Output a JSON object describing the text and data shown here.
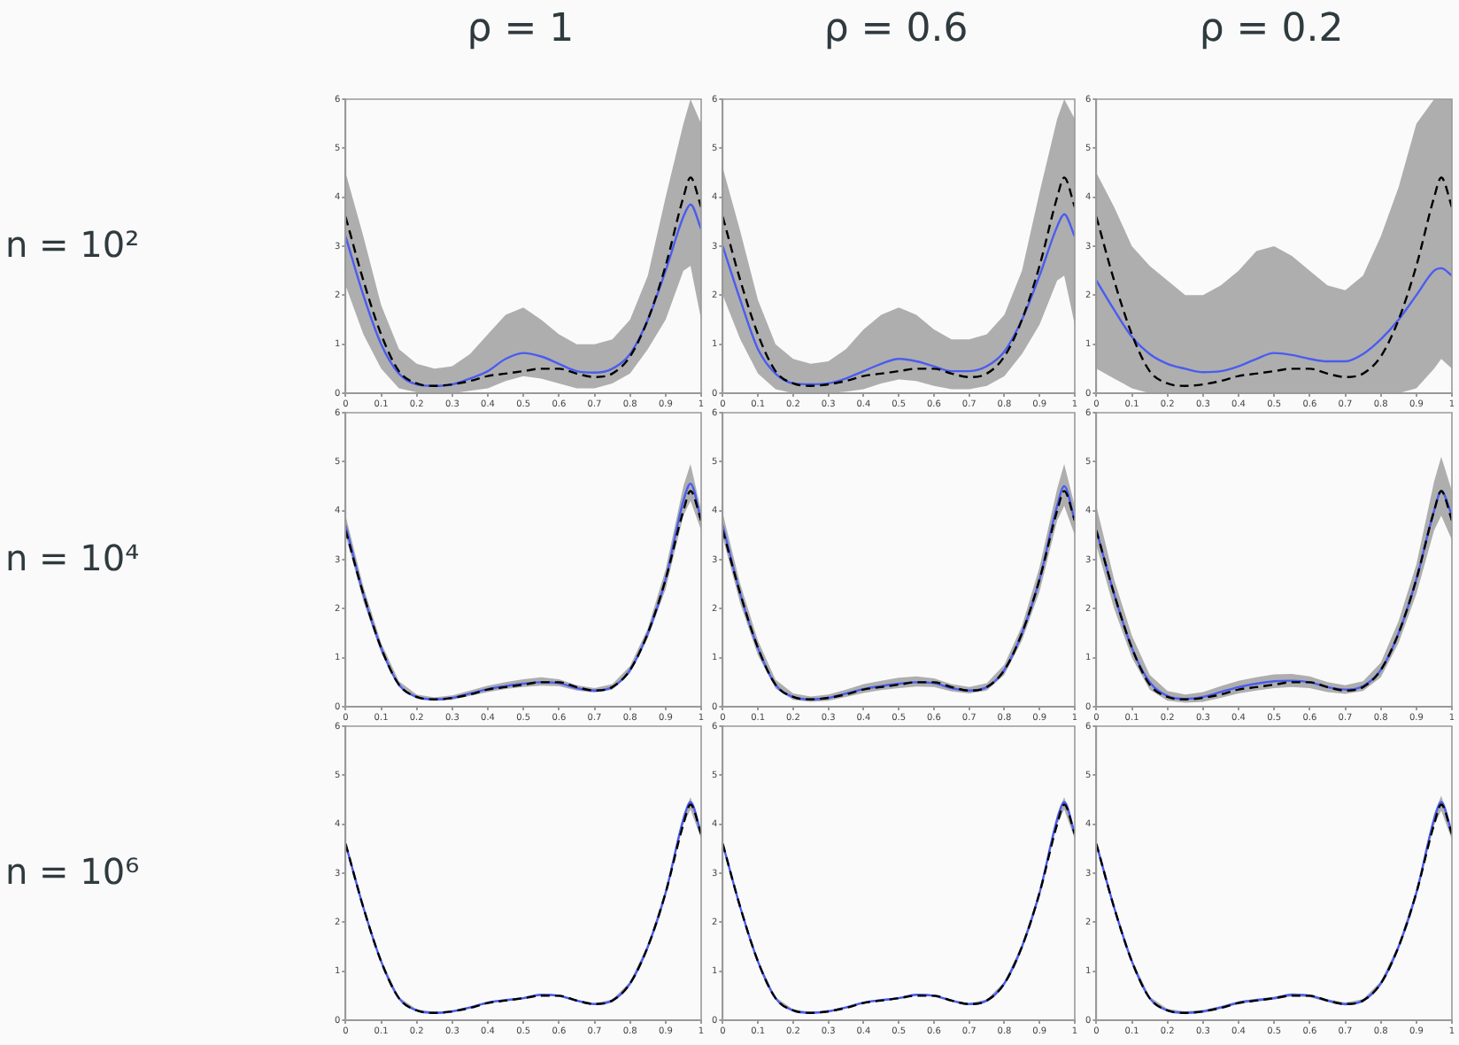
{
  "chart_data": [
    {
      "type": "line",
      "title": "ρ = 1",
      "ylabel": "n = 10²",
      "xlim": [
        0,
        1
      ],
      "ylim": [
        0,
        6
      ],
      "xticks": [
        0,
        0.1,
        0.2,
        0.3,
        0.4,
        0.5,
        0.6,
        0.7,
        0.8,
        0.9,
        1
      ],
      "yticks": [
        0,
        1,
        2,
        3,
        4,
        5,
        6
      ],
      "x": [
        0,
        0.05,
        0.1,
        0.15,
        0.2,
        0.25,
        0.3,
        0.35,
        0.4,
        0.45,
        0.5,
        0.55,
        0.6,
        0.65,
        0.7,
        0.75,
        0.8,
        0.85,
        0.9,
        0.95,
        0.97,
        1
      ],
      "series": [
        {
          "color": "#4a5cf0",
          "values": [
            3.2,
            2.0,
            1.0,
            0.4,
            0.18,
            0.15,
            0.18,
            0.3,
            0.45,
            0.7,
            0.82,
            0.75,
            0.6,
            0.45,
            0.42,
            0.5,
            0.8,
            1.5,
            2.5,
            3.6,
            3.85,
            3.35
          ],
          "lower": [
            2.2,
            1.2,
            0.5,
            0.1,
            0.02,
            0,
            0,
            0.05,
            0.1,
            0.25,
            0.35,
            0.3,
            0.2,
            0.1,
            0.1,
            0.2,
            0.4,
            0.9,
            1.5,
            2.5,
            2.6,
            1.5
          ],
          "upper": [
            4.5,
            3.2,
            1.8,
            0.9,
            0.6,
            0.5,
            0.55,
            0.8,
            1.2,
            1.6,
            1.75,
            1.5,
            1.2,
            1.0,
            1.0,
            1.1,
            1.5,
            2.4,
            4.0,
            5.5,
            6,
            5.5
          ]
        },
        {
          "color": "#000000",
          "line_style": "dashed",
          "values": [
            3.6,
            2.3,
            1.2,
            0.45,
            0.2,
            0.15,
            0.18,
            0.25,
            0.35,
            0.4,
            0.45,
            0.5,
            0.5,
            0.4,
            0.33,
            0.4,
            0.75,
            1.5,
            2.6,
            4.0,
            4.4,
            3.8
          ]
        }
      ]
    },
    {
      "type": "line",
      "title": "ρ = 0.6",
      "xlim": [
        0,
        1
      ],
      "ylim": [
        0,
        6
      ],
      "xticks": [
        0,
        0.1,
        0.2,
        0.3,
        0.4,
        0.5,
        0.6,
        0.7,
        0.8,
        0.9,
        1
      ],
      "yticks": [
        0,
        1,
        2,
        3,
        4,
        5,
        6
      ],
      "x": [
        0,
        0.05,
        0.1,
        0.15,
        0.2,
        0.25,
        0.3,
        0.35,
        0.4,
        0.45,
        0.5,
        0.55,
        0.6,
        0.65,
        0.7,
        0.75,
        0.8,
        0.85,
        0.9,
        0.95,
        0.97,
        1
      ],
      "series": [
        {
          "color": "#4a5cf0",
          "values": [
            3.0,
            1.9,
            0.9,
            0.4,
            0.2,
            0.18,
            0.2,
            0.3,
            0.45,
            0.6,
            0.7,
            0.65,
            0.55,
            0.45,
            0.45,
            0.55,
            0.85,
            1.5,
            2.4,
            3.4,
            3.65,
            3.2
          ],
          "lower": [
            2.0,
            1.1,
            0.4,
            0.08,
            0,
            0,
            0,
            0.03,
            0.08,
            0.2,
            0.28,
            0.25,
            0.15,
            0.08,
            0.08,
            0.15,
            0.35,
            0.8,
            1.4,
            2.3,
            2.4,
            1.4
          ],
          "upper": [
            4.6,
            3.3,
            1.9,
            1.0,
            0.7,
            0.6,
            0.65,
            0.9,
            1.3,
            1.6,
            1.75,
            1.6,
            1.3,
            1.1,
            1.1,
            1.2,
            1.6,
            2.5,
            4.1,
            5.6,
            6,
            5.6
          ]
        },
        {
          "color": "#000000",
          "line_style": "dashed",
          "values": [
            3.6,
            2.3,
            1.2,
            0.45,
            0.2,
            0.15,
            0.18,
            0.25,
            0.35,
            0.4,
            0.45,
            0.5,
            0.5,
            0.4,
            0.33,
            0.4,
            0.75,
            1.5,
            2.6,
            4.0,
            4.4,
            3.8
          ]
        }
      ]
    },
    {
      "type": "line",
      "title": "ρ = 0.2",
      "xlim": [
        0,
        1
      ],
      "ylim": [
        0,
        6
      ],
      "xticks": [
        0,
        0.1,
        0.2,
        0.3,
        0.4,
        0.5,
        0.6,
        0.7,
        0.8,
        0.9,
        1
      ],
      "yticks": [
        0,
        1,
        2,
        3,
        4,
        5,
        6
      ],
      "x": [
        0,
        0.05,
        0.1,
        0.15,
        0.2,
        0.25,
        0.3,
        0.35,
        0.4,
        0.45,
        0.5,
        0.55,
        0.6,
        0.65,
        0.7,
        0.75,
        0.8,
        0.85,
        0.9,
        0.95,
        0.97,
        1
      ],
      "series": [
        {
          "color": "#4a5cf0",
          "values": [
            2.3,
            1.7,
            1.15,
            0.8,
            0.6,
            0.5,
            0.43,
            0.45,
            0.55,
            0.7,
            0.82,
            0.78,
            0.7,
            0.65,
            0.65,
            0.8,
            1.1,
            1.5,
            2.0,
            2.5,
            2.55,
            2.4
          ],
          "lower": [
            0.5,
            0.3,
            0.1,
            0,
            0,
            0,
            0,
            0,
            0,
            0,
            0,
            0,
            0,
            0,
            0,
            0,
            0,
            0,
            0.1,
            0.5,
            0.7,
            0.5
          ],
          "upper": [
            4.5,
            3.8,
            3.0,
            2.6,
            2.3,
            2.0,
            2.0,
            2.2,
            2.5,
            2.9,
            3.0,
            2.8,
            2.5,
            2.2,
            2.1,
            2.4,
            3.2,
            4.2,
            5.5,
            6,
            6,
            6
          ]
        },
        {
          "color": "#000000",
          "line_style": "dashed",
          "values": [
            3.6,
            2.3,
            1.2,
            0.45,
            0.2,
            0.15,
            0.18,
            0.25,
            0.35,
            0.4,
            0.45,
            0.5,
            0.5,
            0.4,
            0.33,
            0.4,
            0.75,
            1.5,
            2.6,
            4.0,
            4.4,
            3.8
          ]
        }
      ]
    },
    {
      "type": "line",
      "ylabel": "n = 10⁴",
      "xlim": [
        0,
        1
      ],
      "ylim": [
        0,
        6
      ],
      "xticks": [
        0,
        0.1,
        0.2,
        0.3,
        0.4,
        0.5,
        0.6,
        0.7,
        0.8,
        0.9,
        1
      ],
      "yticks": [
        0,
        1,
        2,
        3,
        4,
        5,
        6
      ],
      "x": [
        0,
        0.05,
        0.1,
        0.15,
        0.2,
        0.25,
        0.3,
        0.35,
        0.4,
        0.45,
        0.5,
        0.55,
        0.6,
        0.65,
        0.7,
        0.75,
        0.8,
        0.85,
        0.9,
        0.95,
        0.97,
        1
      ],
      "series": [
        {
          "color": "#4a5cf0",
          "values": [
            3.7,
            2.3,
            1.2,
            0.45,
            0.2,
            0.15,
            0.18,
            0.27,
            0.36,
            0.42,
            0.47,
            0.5,
            0.48,
            0.38,
            0.33,
            0.4,
            0.75,
            1.5,
            2.6,
            4.2,
            4.55,
            3.8
          ],
          "lower": [
            3.5,
            2.15,
            1.1,
            0.4,
            0.16,
            0.12,
            0.14,
            0.22,
            0.3,
            0.36,
            0.4,
            0.43,
            0.42,
            0.33,
            0.29,
            0.35,
            0.68,
            1.4,
            2.4,
            3.9,
            4.2,
            3.6
          ],
          "upper": [
            3.9,
            2.45,
            1.3,
            0.52,
            0.25,
            0.19,
            0.23,
            0.33,
            0.43,
            0.5,
            0.56,
            0.6,
            0.56,
            0.44,
            0.38,
            0.46,
            0.83,
            1.6,
            2.8,
            4.5,
            4.95,
            4.0
          ]
        },
        {
          "color": "#000000",
          "line_style": "dashed",
          "values": [
            3.6,
            2.3,
            1.2,
            0.45,
            0.2,
            0.15,
            0.18,
            0.25,
            0.35,
            0.4,
            0.45,
            0.5,
            0.5,
            0.4,
            0.33,
            0.4,
            0.75,
            1.5,
            2.6,
            4.0,
            4.4,
            3.8
          ]
        }
      ]
    },
    {
      "type": "line",
      "xlim": [
        0,
        1
      ],
      "ylim": [
        0,
        6
      ],
      "xticks": [
        0,
        0.1,
        0.2,
        0.3,
        0.4,
        0.5,
        0.6,
        0.7,
        0.8,
        0.9,
        1
      ],
      "yticks": [
        0,
        1,
        2,
        3,
        4,
        5,
        6
      ],
      "x": [
        0,
        0.05,
        0.1,
        0.15,
        0.2,
        0.25,
        0.3,
        0.35,
        0.4,
        0.45,
        0.5,
        0.55,
        0.6,
        0.65,
        0.7,
        0.75,
        0.8,
        0.85,
        0.9,
        0.95,
        0.97,
        1
      ],
      "series": [
        {
          "color": "#4a5cf0",
          "values": [
            3.7,
            2.3,
            1.2,
            0.45,
            0.2,
            0.15,
            0.18,
            0.27,
            0.36,
            0.42,
            0.47,
            0.5,
            0.48,
            0.38,
            0.33,
            0.4,
            0.75,
            1.5,
            2.6,
            4.1,
            4.5,
            3.8
          ],
          "lower": [
            3.45,
            2.1,
            1.05,
            0.37,
            0.14,
            0.1,
            0.12,
            0.2,
            0.28,
            0.34,
            0.38,
            0.41,
            0.4,
            0.31,
            0.27,
            0.33,
            0.65,
            1.35,
            2.35,
            3.8,
            4.1,
            3.5
          ],
          "upper": [
            3.95,
            2.5,
            1.35,
            0.55,
            0.27,
            0.21,
            0.25,
            0.35,
            0.46,
            0.53,
            0.59,
            0.62,
            0.58,
            0.46,
            0.4,
            0.48,
            0.86,
            1.65,
            2.85,
            4.45,
            4.95,
            4.1
          ]
        },
        {
          "color": "#000000",
          "line_style": "dashed",
          "values": [
            3.6,
            2.3,
            1.2,
            0.45,
            0.2,
            0.15,
            0.18,
            0.25,
            0.35,
            0.4,
            0.45,
            0.5,
            0.5,
            0.4,
            0.33,
            0.4,
            0.75,
            1.5,
            2.6,
            4.0,
            4.4,
            3.8
          ]
        }
      ]
    },
    {
      "type": "line",
      "xlim": [
        0,
        1
      ],
      "ylim": [
        0,
        6
      ],
      "xticks": [
        0,
        0.1,
        0.2,
        0.3,
        0.4,
        0.5,
        0.6,
        0.7,
        0.8,
        0.9,
        1
      ],
      "yticks": [
        0,
        1,
        2,
        3,
        4,
        5,
        6
      ],
      "x": [
        0,
        0.05,
        0.1,
        0.15,
        0.2,
        0.25,
        0.3,
        0.35,
        0.4,
        0.45,
        0.5,
        0.55,
        0.6,
        0.65,
        0.7,
        0.75,
        0.8,
        0.85,
        0.9,
        0.95,
        0.97,
        1
      ],
      "series": [
        {
          "color": "#4a5cf0",
          "values": [
            3.6,
            2.3,
            1.2,
            0.5,
            0.22,
            0.16,
            0.2,
            0.3,
            0.4,
            0.47,
            0.52,
            0.53,
            0.5,
            0.4,
            0.35,
            0.42,
            0.75,
            1.5,
            2.6,
            4.0,
            4.4,
            3.9
          ],
          "lower": [
            3.3,
            2.0,
            1.0,
            0.35,
            0.12,
            0.08,
            0.1,
            0.18,
            0.27,
            0.33,
            0.38,
            0.4,
            0.38,
            0.3,
            0.26,
            0.32,
            0.6,
            1.3,
            2.3,
            3.6,
            3.9,
            3.4
          ],
          "upper": [
            4.1,
            2.6,
            1.45,
            0.65,
            0.32,
            0.25,
            0.3,
            0.42,
            0.53,
            0.6,
            0.66,
            0.67,
            0.62,
            0.5,
            0.44,
            0.52,
            0.9,
            1.75,
            2.9,
            4.6,
            5.1,
            4.4
          ]
        },
        {
          "color": "#000000",
          "line_style": "dashed",
          "values": [
            3.6,
            2.3,
            1.2,
            0.45,
            0.2,
            0.15,
            0.18,
            0.25,
            0.35,
            0.4,
            0.45,
            0.5,
            0.5,
            0.4,
            0.33,
            0.4,
            0.75,
            1.5,
            2.6,
            4.0,
            4.4,
            3.8
          ]
        }
      ]
    },
    {
      "type": "line",
      "ylabel": "n = 10⁶",
      "xlim": [
        0,
        1
      ],
      "ylim": [
        0,
        6
      ],
      "xticks": [
        0,
        0.1,
        0.2,
        0.3,
        0.4,
        0.5,
        0.6,
        0.7,
        0.8,
        0.9,
        1
      ],
      "yticks": [
        0,
        1,
        2,
        3,
        4,
        5,
        6
      ],
      "x": [
        0,
        0.05,
        0.1,
        0.15,
        0.2,
        0.25,
        0.3,
        0.35,
        0.4,
        0.45,
        0.5,
        0.55,
        0.6,
        0.65,
        0.7,
        0.75,
        0.8,
        0.85,
        0.9,
        0.95,
        0.97,
        1
      ],
      "series": [
        {
          "color": "#4a5cf0",
          "values": [
            3.6,
            2.3,
            1.2,
            0.45,
            0.2,
            0.15,
            0.18,
            0.26,
            0.36,
            0.41,
            0.45,
            0.52,
            0.5,
            0.4,
            0.33,
            0.4,
            0.75,
            1.5,
            2.6,
            4.1,
            4.45,
            3.8
          ],
          "lower": [
            3.55,
            2.26,
            1.17,
            0.43,
            0.18,
            0.13,
            0.16,
            0.24,
            0.34,
            0.39,
            0.43,
            0.5,
            0.48,
            0.38,
            0.31,
            0.38,
            0.72,
            1.46,
            2.55,
            4.0,
            4.3,
            3.7
          ],
          "upper": [
            3.65,
            2.34,
            1.23,
            0.47,
            0.22,
            0.17,
            0.2,
            0.28,
            0.38,
            0.43,
            0.47,
            0.54,
            0.52,
            0.42,
            0.35,
            0.42,
            0.78,
            1.54,
            2.65,
            4.2,
            4.55,
            3.9
          ]
        },
        {
          "color": "#000000",
          "line_style": "dashed",
          "values": [
            3.6,
            2.3,
            1.2,
            0.45,
            0.2,
            0.15,
            0.18,
            0.25,
            0.35,
            0.4,
            0.45,
            0.5,
            0.5,
            0.4,
            0.33,
            0.4,
            0.75,
            1.5,
            2.6,
            4.0,
            4.4,
            3.8
          ]
        }
      ]
    },
    {
      "type": "line",
      "xlim": [
        0,
        1
      ],
      "ylim": [
        0,
        6
      ],
      "xticks": [
        0,
        0.1,
        0.2,
        0.3,
        0.4,
        0.5,
        0.6,
        0.7,
        0.8,
        0.9,
        1
      ],
      "yticks": [
        0,
        1,
        2,
        3,
        4,
        5,
        6
      ],
      "x": [
        0,
        0.05,
        0.1,
        0.15,
        0.2,
        0.25,
        0.3,
        0.35,
        0.4,
        0.45,
        0.5,
        0.55,
        0.6,
        0.65,
        0.7,
        0.75,
        0.8,
        0.85,
        0.9,
        0.95,
        0.97,
        1
      ],
      "series": [
        {
          "color": "#4a5cf0",
          "values": [
            3.6,
            2.3,
            1.2,
            0.45,
            0.2,
            0.15,
            0.18,
            0.26,
            0.36,
            0.41,
            0.45,
            0.52,
            0.5,
            0.4,
            0.33,
            0.4,
            0.75,
            1.5,
            2.6,
            4.1,
            4.45,
            3.8
          ],
          "lower": [
            3.55,
            2.26,
            1.17,
            0.43,
            0.18,
            0.13,
            0.16,
            0.24,
            0.34,
            0.39,
            0.43,
            0.5,
            0.48,
            0.38,
            0.31,
            0.38,
            0.72,
            1.46,
            2.55,
            4.0,
            4.3,
            3.7
          ],
          "upper": [
            3.65,
            2.34,
            1.23,
            0.47,
            0.22,
            0.17,
            0.2,
            0.28,
            0.38,
            0.43,
            0.47,
            0.54,
            0.52,
            0.42,
            0.35,
            0.42,
            0.78,
            1.54,
            2.65,
            4.2,
            4.55,
            3.9
          ]
        },
        {
          "color": "#000000",
          "line_style": "dashed",
          "values": [
            3.6,
            2.3,
            1.2,
            0.45,
            0.2,
            0.15,
            0.18,
            0.25,
            0.35,
            0.4,
            0.45,
            0.5,
            0.5,
            0.4,
            0.33,
            0.4,
            0.75,
            1.5,
            2.6,
            4.0,
            4.4,
            3.8
          ]
        }
      ]
    },
    {
      "type": "line",
      "xlim": [
        0,
        1
      ],
      "ylim": [
        0,
        6
      ],
      "xticks": [
        0,
        0.1,
        0.2,
        0.3,
        0.4,
        0.5,
        0.6,
        0.7,
        0.8,
        0.9,
        1
      ],
      "yticks": [
        0,
        1,
        2,
        3,
        4,
        5,
        6
      ],
      "x": [
        0,
        0.05,
        0.1,
        0.15,
        0.2,
        0.25,
        0.3,
        0.35,
        0.4,
        0.45,
        0.5,
        0.55,
        0.6,
        0.65,
        0.7,
        0.75,
        0.8,
        0.85,
        0.9,
        0.95,
        0.97,
        1
      ],
      "series": [
        {
          "color": "#4a5cf0",
          "values": [
            3.6,
            2.3,
            1.2,
            0.45,
            0.2,
            0.15,
            0.18,
            0.26,
            0.36,
            0.41,
            0.45,
            0.52,
            0.5,
            0.4,
            0.33,
            0.4,
            0.75,
            1.5,
            2.6,
            4.1,
            4.45,
            3.8
          ],
          "lower": [
            3.55,
            2.25,
            1.16,
            0.42,
            0.17,
            0.12,
            0.15,
            0.23,
            0.33,
            0.38,
            0.42,
            0.49,
            0.47,
            0.37,
            0.3,
            0.37,
            0.71,
            1.45,
            2.54,
            3.98,
            4.28,
            3.68
          ],
          "upper": [
            3.66,
            2.35,
            1.24,
            0.48,
            0.23,
            0.18,
            0.21,
            0.29,
            0.39,
            0.44,
            0.48,
            0.55,
            0.53,
            0.43,
            0.36,
            0.43,
            0.79,
            1.55,
            2.66,
            4.22,
            4.58,
            3.92
          ]
        },
        {
          "color": "#000000",
          "line_style": "dashed",
          "values": [
            3.6,
            2.3,
            1.2,
            0.45,
            0.2,
            0.15,
            0.18,
            0.25,
            0.35,
            0.4,
            0.45,
            0.5,
            0.5,
            0.4,
            0.33,
            0.4,
            0.75,
            1.5,
            2.6,
            4.0,
            4.4,
            3.8
          ]
        }
      ]
    }
  ]
}
